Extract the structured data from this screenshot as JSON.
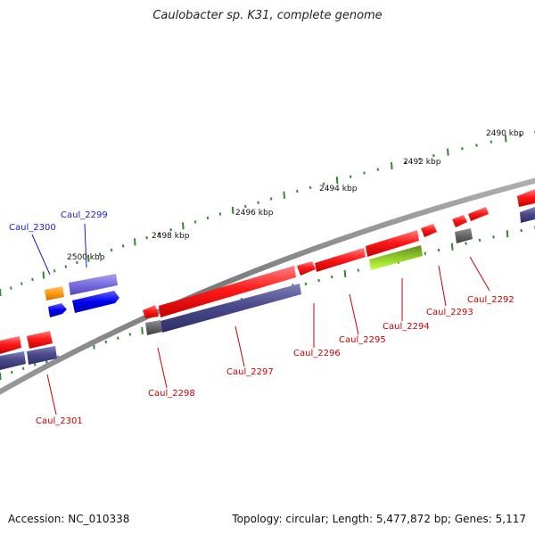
{
  "title": "Caulobacter sp. K31, complete genome",
  "footer": {
    "accession": "Accession: NC_010338",
    "info": "Topology: circular; Length: 5,477,872 bp; Genes: 5,117"
  },
  "colors": {
    "backbone": "#8a8a8a",
    "forward_gene": "#ff1a1a",
    "reverse_gene": "#4a4a8c",
    "gene_label": "#cc0000",
    "other_label": "#1a1acc",
    "ruler": "#2e8b2e"
  },
  "scale_labels": [
    "2490 kbp",
    "2492 kbp",
    "2494 kbp",
    "2496 kbp",
    "2498 kbp",
    "2500 kbp"
  ],
  "genes": [
    {
      "label": "Caul_2292",
      "color": "red"
    },
    {
      "label": "Caul_2293",
      "color": "red"
    },
    {
      "label": "Caul_2294",
      "color": "red"
    },
    {
      "label": "Caul_2295",
      "color": "red"
    },
    {
      "label": "Caul_2296",
      "color": "red"
    },
    {
      "label": "Caul_2297",
      "color": "red"
    },
    {
      "label": "Caul_2298",
      "color": "red"
    },
    {
      "label": "Caul_2299",
      "color": "blue"
    },
    {
      "label": "Caul_2300",
      "color": "blue"
    },
    {
      "label": "Caul_2301",
      "color": "red"
    }
  ]
}
